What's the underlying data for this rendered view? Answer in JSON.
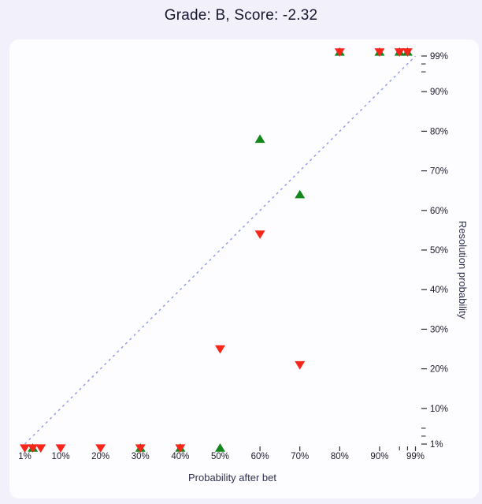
{
  "header": {
    "title": "Grade: B, Score: -2.32"
  },
  "colors": {
    "page_background": "#f2f0fb",
    "card_background": "#fdfdff",
    "title_text": "#15152e",
    "tick_text": "#1c1c30",
    "tick_line": "#2a2a3a",
    "axis_title_text": "#2e3050",
    "identity_line": "#8b96f2",
    "marker_red": "#f6261a",
    "marker_green": "#13871c"
  },
  "chart_data": {
    "type": "scatter",
    "title": "Grade: B, Score: -2.32",
    "xlabel": "Probability after bet",
    "ylabel": "Resolution probability",
    "xlim": [
      0,
      100
    ],
    "ylim": [
      0,
      100
    ],
    "grid": false,
    "legend": false,
    "x_axis": {
      "major_ticks": [
        1,
        10,
        20,
        30,
        40,
        50,
        60,
        70,
        80,
        90,
        99
      ],
      "minor_ticks": [
        95,
        97
      ],
      "tick_label_format": "percent",
      "position": "bottom"
    },
    "y_axis": {
      "major_ticks": [
        1,
        10,
        20,
        30,
        40,
        50,
        60,
        70,
        80,
        90,
        99
      ],
      "minor_ticks": [
        3,
        5,
        95,
        97
      ],
      "tick_label_format": "percent",
      "position": "right"
    },
    "identity_line": {
      "x": [
        1,
        99
      ],
      "y": [
        1,
        99
      ],
      "style": "dashed"
    },
    "series": [
      {
        "name": "green-up-triangles",
        "marker": "triangle-up",
        "color_key": "marker_green",
        "points": [
          {
            "x": 50,
            "y": 0
          },
          {
            "x": 60,
            "y": 78
          },
          {
            "x": 70,
            "y": 64
          }
        ]
      },
      {
        "name": "red-down-triangles",
        "marker": "triangle-down",
        "color_key": "marker_red",
        "points": [
          {
            "x": 1,
            "y": 0
          },
          {
            "x": 5,
            "y": 0
          },
          {
            "x": 10,
            "y": 0
          },
          {
            "x": 20,
            "y": 0
          },
          {
            "x": 50,
            "y": 25
          },
          {
            "x": 60,
            "y": 54
          },
          {
            "x": 70,
            "y": 21
          }
        ]
      },
      {
        "name": "overlap-stars-green-up-plus-red-down",
        "marker": "star-overlap",
        "color_key": "marker_red",
        "points": [
          {
            "x": 3,
            "y": 0
          },
          {
            "x": 30,
            "y": 0
          },
          {
            "x": 40,
            "y": 0
          },
          {
            "x": 80,
            "y": 100
          },
          {
            "x": 90,
            "y": 100
          },
          {
            "x": 95,
            "y": 100
          },
          {
            "x": 97,
            "y": 100
          }
        ]
      }
    ]
  }
}
